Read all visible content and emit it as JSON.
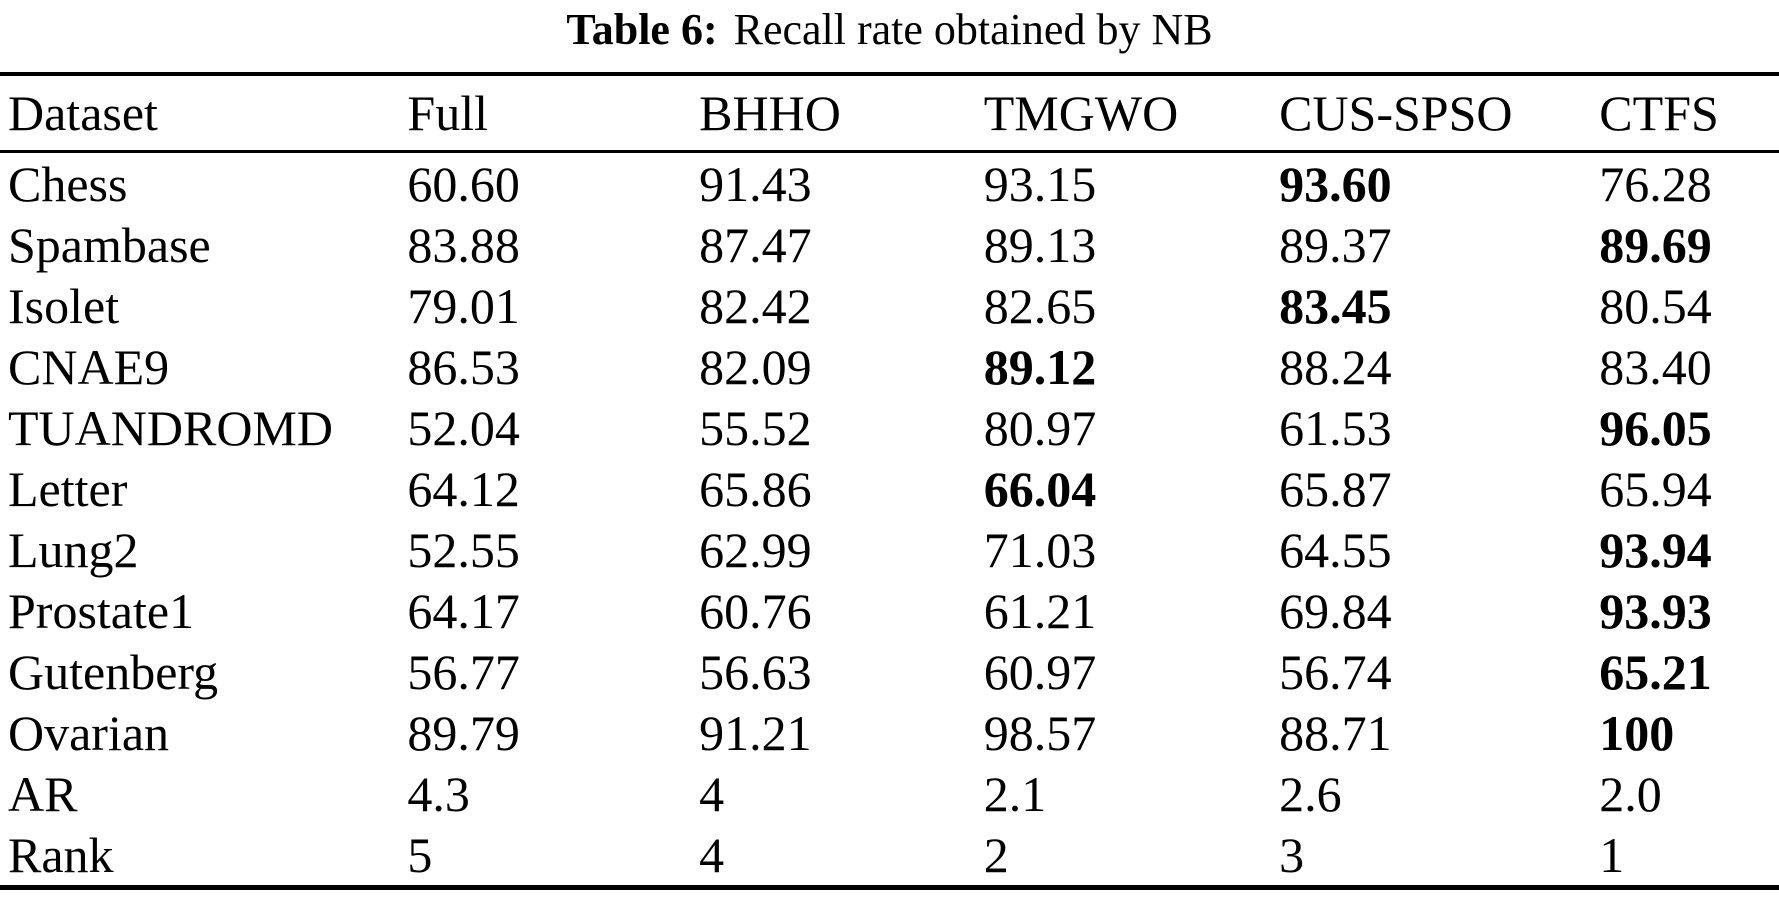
{
  "title": {
    "prefix": "Table 6:",
    "rest": "Recall rate obtained by NB"
  },
  "colors": {
    "text": "#000000",
    "background": "#ffffff",
    "rule": "#000000"
  },
  "chart_data": {
    "type": "table",
    "title": "Table 6: Recall rate obtained by NB",
    "columns": [
      "Dataset",
      "Full",
      "BHHO",
      "TMGWO",
      "CUS-SPSO",
      "CTFS"
    ],
    "rows": [
      {
        "cells": [
          "Chess",
          "60.60",
          "91.43",
          "93.15",
          "93.60",
          "76.28"
        ],
        "bold": 4
      },
      {
        "cells": [
          "Spambase",
          "83.88",
          "87.47",
          "89.13",
          "89.37",
          "89.69"
        ],
        "bold": 5
      },
      {
        "cells": [
          "Isolet",
          "79.01",
          "82.42",
          "82.65",
          "83.45",
          "80.54"
        ],
        "bold": 4
      },
      {
        "cells": [
          "CNAE9",
          "86.53",
          "82.09",
          "89.12",
          "88.24",
          "83.40"
        ],
        "bold": 3
      },
      {
        "cells": [
          "TUANDROMD",
          "52.04",
          "55.52",
          "80.97",
          "61.53",
          "96.05"
        ],
        "bold": 5
      },
      {
        "cells": [
          "Letter",
          "64.12",
          "65.86",
          "66.04",
          "65.87",
          "65.94"
        ],
        "bold": 3
      },
      {
        "cells": [
          "Lung2",
          "52.55",
          "62.99",
          "71.03",
          "64.55",
          "93.94"
        ],
        "bold": 5
      },
      {
        "cells": [
          "Prostate1",
          "64.17",
          "60.76",
          "61.21",
          "69.84",
          "93.93"
        ],
        "bold": 5
      },
      {
        "cells": [
          "Gutenberg",
          "56.77",
          "56.63",
          "60.97",
          "56.74",
          "65.21"
        ],
        "bold": 5
      },
      {
        "cells": [
          "Ovarian",
          "89.79",
          "91.21",
          "98.57",
          "88.71",
          "100"
        ],
        "bold": 5
      },
      {
        "cells": [
          "AR",
          "4.3",
          "4",
          "2.1",
          "2.6",
          "2.0"
        ],
        "bold": -1
      },
      {
        "cells": [
          "Rank",
          "5",
          "4",
          "2",
          "3",
          "1"
        ],
        "bold": -1
      }
    ]
  }
}
